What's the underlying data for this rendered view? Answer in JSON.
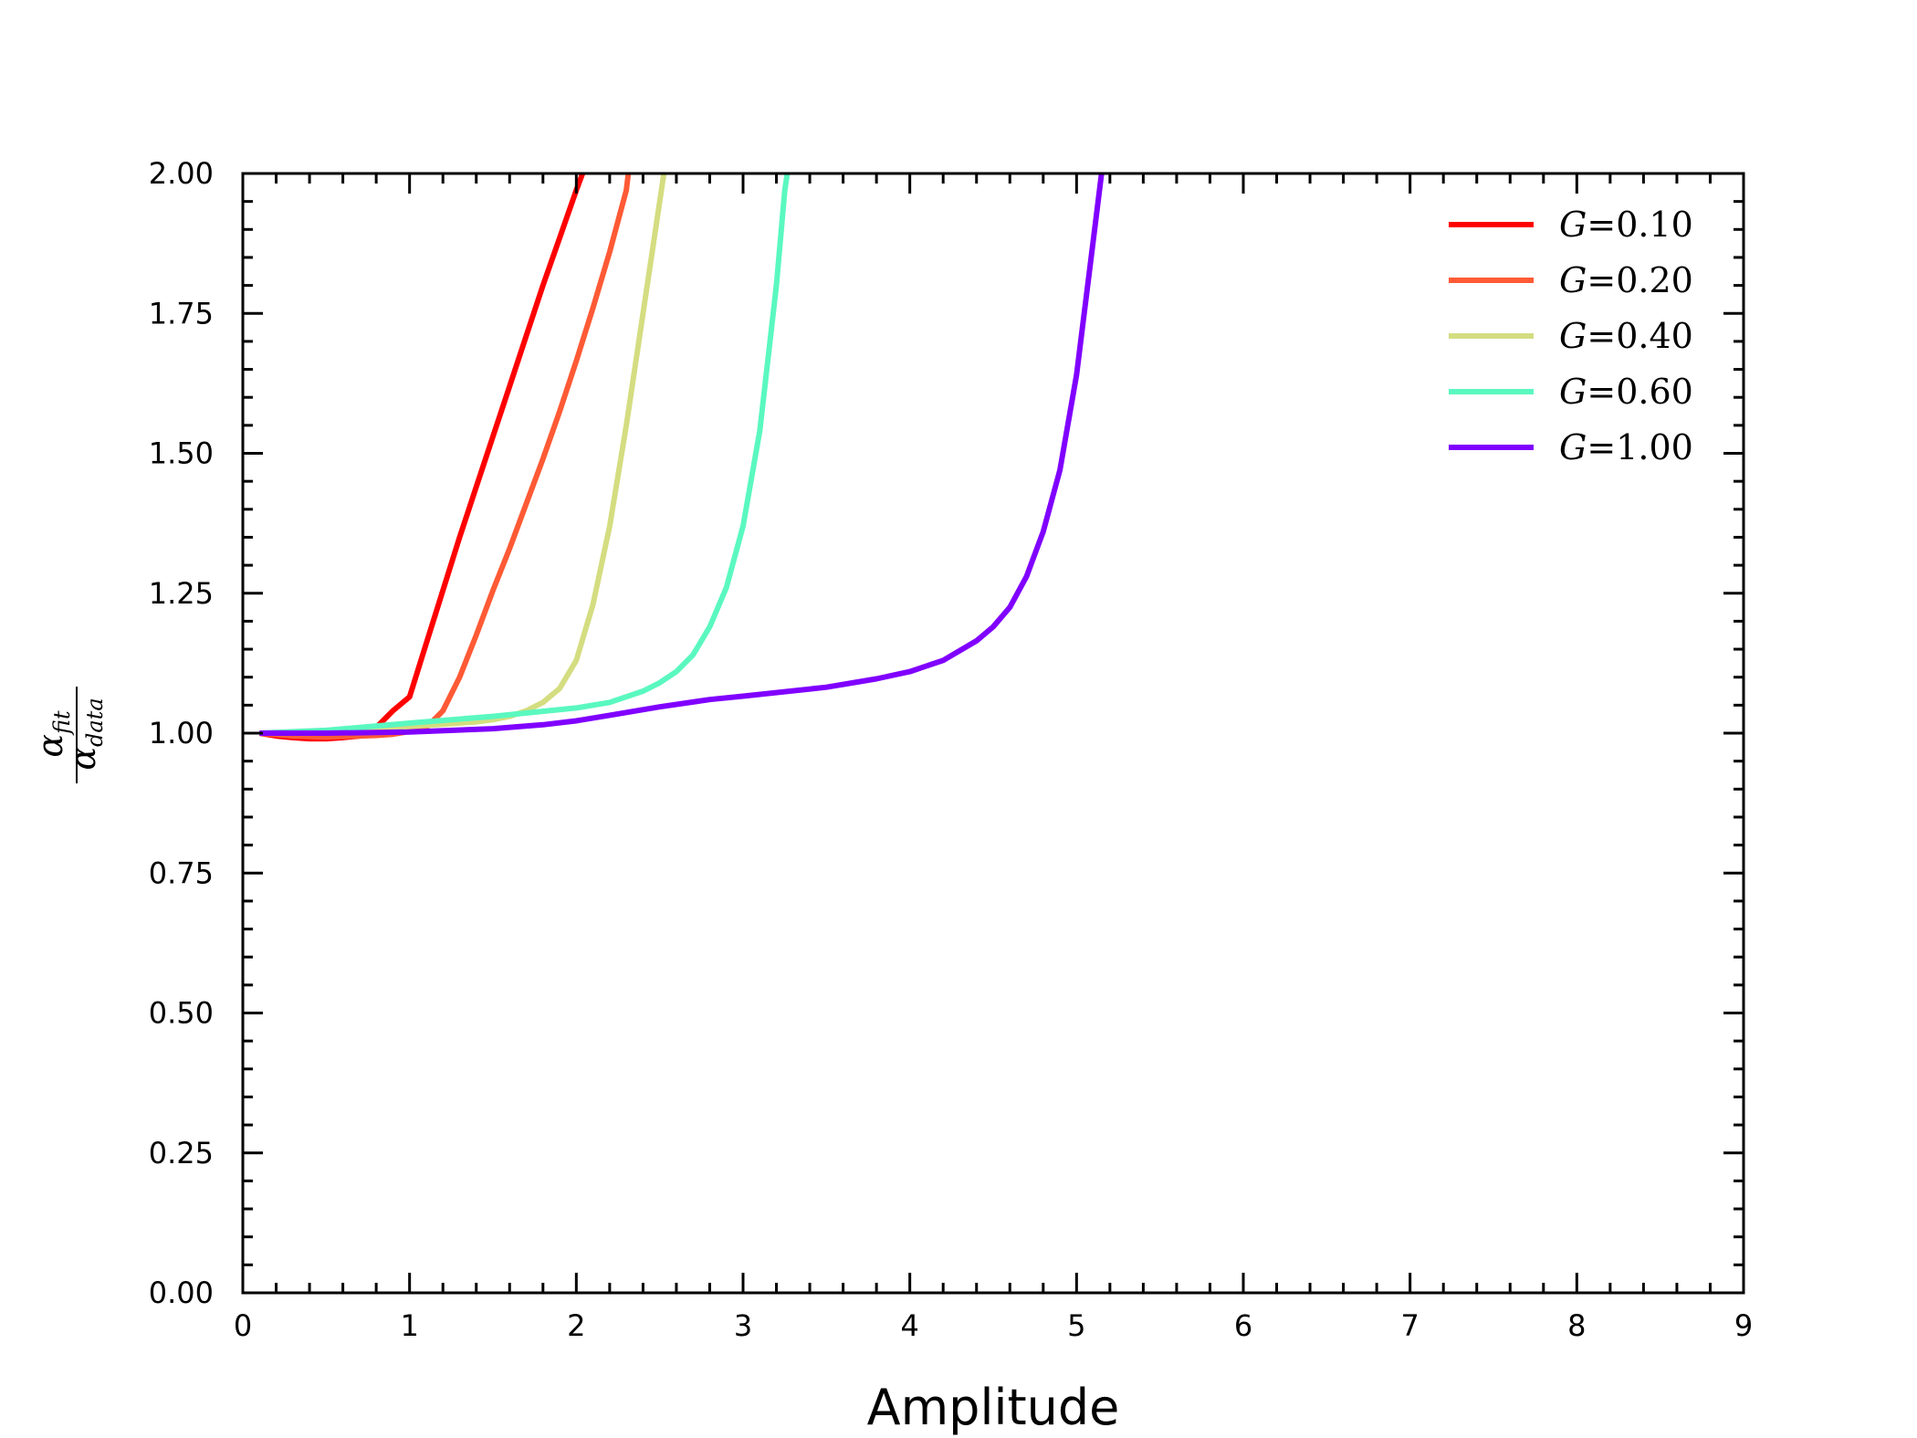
{
  "chart_data": {
    "type": "line",
    "title": "",
    "xlabel": "Amplitude",
    "ylabel": {
      "numerator": "α",
      "numerator_sub": "fit",
      "denominator": "α",
      "denominator_sub": "data"
    },
    "xlim": [
      0,
      9
    ],
    "ylim": [
      0,
      2
    ],
    "xticks": [
      "0",
      "1",
      "2",
      "3",
      "4",
      "5",
      "6",
      "7",
      "8",
      "9"
    ],
    "yticks": [
      "0.00",
      "0.25",
      "0.50",
      "0.75",
      "1.00",
      "1.25",
      "1.50",
      "1.75",
      "2.00"
    ],
    "grid": false,
    "legend_position": "top-right",
    "series": [
      {
        "name": "G=0.10",
        "label_var": "G",
        "label_eq": "=0.10",
        "color": "#ff0000",
        "x": [
          0.1,
          0.2,
          0.3,
          0.4,
          0.5,
          0.6,
          0.7,
          0.8,
          0.9,
          1.0,
          1.1,
          1.2,
          1.3,
          1.4,
          1.5,
          1.6,
          1.7,
          1.8,
          1.9,
          2.0,
          2.1,
          2.14
        ],
        "y": [
          1.0,
          0.995,
          0.992,
          0.99,
          0.99,
          0.992,
          0.995,
          1.01,
          1.04,
          1.065,
          1.16,
          1.255,
          1.35,
          1.44,
          1.53,
          1.62,
          1.71,
          1.8,
          1.885,
          1.97,
          2.05,
          2.08
        ]
      },
      {
        "name": "G=0.20",
        "label_var": "G",
        "label_eq": "=0.20",
        "color": "#ff5a35",
        "x": [
          0.1,
          0.3,
          0.5,
          0.7,
          0.8,
          0.9,
          1.0,
          1.1,
          1.15,
          1.2,
          1.3,
          1.4,
          1.5,
          1.6,
          1.7,
          1.8,
          1.9,
          2.0,
          2.1,
          2.2,
          2.3,
          2.32
        ],
        "y": [
          1.0,
          0.995,
          0.993,
          0.995,
          0.996,
          0.998,
          1.003,
          1.01,
          1.025,
          1.04,
          1.1,
          1.175,
          1.255,
          1.33,
          1.41,
          1.49,
          1.575,
          1.665,
          1.76,
          1.86,
          1.97,
          2.02
        ]
      },
      {
        "name": "G=0.40",
        "label_var": "G",
        "label_eq": "=0.40",
        "color": "#d4dd80",
        "x": [
          0.1,
          0.5,
          0.8,
          1.0,
          1.2,
          1.4,
          1.5,
          1.6,
          1.7,
          1.8,
          1.9,
          2.0,
          2.1,
          2.2,
          2.3,
          2.4,
          2.5,
          2.54
        ],
        "y": [
          1.0,
          1.003,
          1.008,
          1.012,
          1.016,
          1.02,
          1.024,
          1.03,
          1.04,
          1.055,
          1.08,
          1.13,
          1.23,
          1.37,
          1.55,
          1.75,
          1.95,
          2.03
        ]
      },
      {
        "name": "G=0.60",
        "label_var": "G",
        "label_eq": "=0.60",
        "color": "#5af8c0",
        "x": [
          0.1,
          0.5,
          1.0,
          1.5,
          2.0,
          2.2,
          2.4,
          2.5,
          2.6,
          2.7,
          2.8,
          2.9,
          3.0,
          3.1,
          3.2,
          3.25,
          3.28
        ],
        "y": [
          1.0,
          1.005,
          1.018,
          1.03,
          1.045,
          1.055,
          1.075,
          1.09,
          1.11,
          1.14,
          1.19,
          1.26,
          1.37,
          1.54,
          1.8,
          1.97,
          2.03
        ]
      },
      {
        "name": "G=1.00",
        "label_var": "G",
        "label_eq": "=1.00",
        "color": "#8000ff",
        "x": [
          0.1,
          0.5,
          1.0,
          1.5,
          1.8,
          2.0,
          2.2,
          2.5,
          2.8,
          3.0,
          3.5,
          3.8,
          4.0,
          4.2,
          4.4,
          4.5,
          4.6,
          4.7,
          4.8,
          4.9,
          5.0,
          5.1,
          5.15,
          5.2,
          5.23
        ],
        "y": [
          1.0,
          1.0,
          1.002,
          1.008,
          1.015,
          1.022,
          1.032,
          1.047,
          1.06,
          1.066,
          1.082,
          1.097,
          1.11,
          1.13,
          1.165,
          1.19,
          1.225,
          1.28,
          1.36,
          1.47,
          1.64,
          1.88,
          2.0,
          2.04,
          2.06
        ]
      }
    ]
  }
}
